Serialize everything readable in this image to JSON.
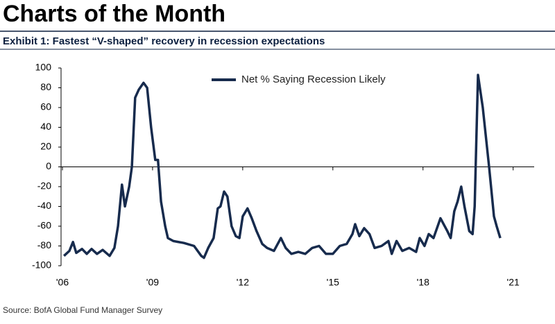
{
  "title": "Charts of the Month",
  "chart_data": {
    "type": "line",
    "title": "Exhibit 1: Fastest “V-shaped” recovery in recession expectations",
    "source": "Source: BofA Global Fund Manager Survey",
    "legend": "top",
    "xlim": [
      2006,
      2021.7
    ],
    "xticks": [
      {
        "value": 2006,
        "label": "'06"
      },
      {
        "value": 2009,
        "label": "'09"
      },
      {
        "value": 2012,
        "label": "'12"
      },
      {
        "value": 2015,
        "label": "'15"
      },
      {
        "value": 2018,
        "label": "'18"
      },
      {
        "value": 2021,
        "label": "'21"
      }
    ],
    "ylim": [
      -100,
      100
    ],
    "yticks": [
      -100,
      -80,
      -60,
      -40,
      -20,
      0,
      20,
      40,
      60,
      80,
      100
    ],
    "x": [
      2006.05,
      2006.23,
      2006.35,
      2006.46,
      2006.65,
      2006.81,
      2006.97,
      2007.15,
      2007.34,
      2007.57,
      2007.73,
      2007.85,
      2007.98,
      2008.08,
      2008.22,
      2008.31,
      2008.42,
      2008.54,
      2008.7,
      2008.82,
      2008.95,
      2009.09,
      2009.18,
      2009.28,
      2009.42,
      2009.51,
      2009.69,
      2010.04,
      2010.38,
      2010.62,
      2010.71,
      2010.85,
      2011.03,
      2011.17,
      2011.26,
      2011.38,
      2011.49,
      2011.63,
      2011.77,
      2011.89,
      2012.0,
      2012.16,
      2012.3,
      2012.46,
      2012.65,
      2012.81,
      2013.04,
      2013.27,
      2013.43,
      2013.62,
      2013.85,
      2014.08,
      2014.31,
      2014.54,
      2014.77,
      2015.0,
      2015.23,
      2015.46,
      2015.65,
      2015.74,
      2015.88,
      2016.04,
      2016.22,
      2016.39,
      2016.62,
      2016.85,
      2016.96,
      2017.12,
      2017.31,
      2017.54,
      2017.77,
      2017.89,
      2018.05,
      2018.19,
      2018.35,
      2018.58,
      2018.81,
      2018.92,
      2019.04,
      2019.15,
      2019.27,
      2019.38,
      2019.54,
      2019.65,
      2019.72,
      2019.83,
      2019.99,
      2020.2,
      2020.36,
      2020.45,
      2020.57
    ],
    "series": [
      {
        "name": "Net % Saying Recession Likely",
        "color": "#172b4d",
        "values": [
          -90,
          -85,
          -76,
          -87,
          -83,
          -88,
          -83,
          -88,
          -84,
          -90,
          -82,
          -60,
          -18,
          -40,
          -20,
          0,
          70,
          78,
          85,
          80,
          40,
          7,
          7,
          -35,
          -60,
          -72,
          -75,
          -77,
          -80,
          -90,
          -92,
          -82,
          -72,
          -42,
          -40,
          -25,
          -30,
          -60,
          -70,
          -72,
          -50,
          -42,
          -52,
          -65,
          -78,
          -82,
          -85,
          -72,
          -82,
          -88,
          -86,
          -88,
          -82,
          -80,
          -88,
          -88,
          -80,
          -78,
          -68,
          -58,
          -70,
          -62,
          -68,
          -82,
          -80,
          -75,
          -88,
          -75,
          -85,
          -82,
          -86,
          -72,
          -80,
          -68,
          -72,
          -52,
          -65,
          -72,
          -45,
          -35,
          -20,
          -40,
          -65,
          -68,
          -40,
          93,
          60,
          0,
          -50,
          -60,
          -72
        ]
      }
    ]
  }
}
